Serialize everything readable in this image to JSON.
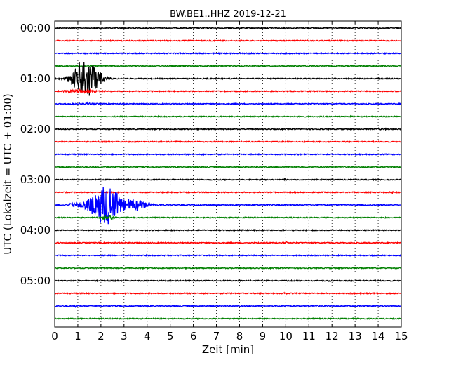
{
  "chart_data": {
    "type": "line",
    "title": "BW.BE1..HHZ 2019-12-21",
    "xlabel": "Zeit  [min]",
    "ylabel": "UTC (Lokalzeit = UTC + 01:00)",
    "xlim": [
      0,
      15
    ],
    "x_ticks": [
      0,
      1,
      2,
      3,
      4,
      5,
      6,
      7,
      8,
      9,
      10,
      11,
      12,
      13,
      14,
      15
    ],
    "x_tick_labels": [
      "0",
      "1",
      "2",
      "3",
      "4",
      "5",
      "6",
      "7",
      "8",
      "9",
      "10",
      "11",
      "12",
      "13",
      "14",
      "15"
    ],
    "y_tick_labels": [
      "00:00",
      "01:00",
      "02:00",
      "03:00",
      "04:00",
      "05:00"
    ],
    "y_ticks_minutes": [
      0,
      60,
      120,
      180,
      240,
      300
    ],
    "grid": true,
    "grid_style": "dotted-vertical",
    "colors": [
      "#000000",
      "#ff0000",
      "#0000ff",
      "#008000"
    ],
    "trace_interval_minutes": 15,
    "traces": [
      {
        "start": "00:00",
        "color": "#000000",
        "events": []
      },
      {
        "start": "00:15",
        "color": "#ff0000",
        "events": [
          {
            "t": 7.3,
            "amp": 0.3,
            "dur": 0.15
          }
        ]
      },
      {
        "start": "00:30",
        "color": "#0000ff",
        "events": []
      },
      {
        "start": "00:45",
        "color": "#008000",
        "events": [
          {
            "t": 14.9,
            "amp": 0.3,
            "dur": 0.1
          }
        ]
      },
      {
        "start": "01:00",
        "color": "#000000",
        "events": [
          {
            "t": 1.35,
            "amp": 7.5,
            "dur": 1.0,
            "spread": 0.4
          }
        ]
      },
      {
        "start": "01:15",
        "color": "#ff0000",
        "events": [
          {
            "t": 1.2,
            "amp": 0.6,
            "dur": 1.2
          }
        ]
      },
      {
        "start": "01:30",
        "color": "#0000ff",
        "events": [
          {
            "t": 1.3,
            "amp": 0.4,
            "dur": 0.6
          }
        ]
      },
      {
        "start": "01:45",
        "color": "#008000",
        "events": []
      },
      {
        "start": "02:00",
        "color": "#000000",
        "events": [
          {
            "t": 14.1,
            "amp": 0.3,
            "dur": 0.3
          }
        ]
      },
      {
        "start": "02:15",
        "color": "#ff0000",
        "events": []
      },
      {
        "start": "02:30",
        "color": "#0000ff",
        "events": []
      },
      {
        "start": "02:45",
        "color": "#008000",
        "events": []
      },
      {
        "start": "03:00",
        "color": "#000000",
        "events": [
          {
            "t": 10.0,
            "amp": 0.3,
            "dur": 0.1
          }
        ]
      },
      {
        "start": "03:15",
        "color": "#ff0000",
        "events": [
          {
            "t": 14.6,
            "amp": 0.4,
            "dur": 0.1
          }
        ]
      },
      {
        "start": "03:30",
        "color": "#0000ff",
        "events": [
          {
            "t": 2.2,
            "amp": 7.0,
            "dur": 1.4,
            "spread": 0.5
          },
          {
            "t": 3.5,
            "amp": 2.2,
            "dur": 1.0,
            "spread": 0.35
          },
          {
            "t": 0.9,
            "amp": 0.8,
            "dur": 0.4
          }
        ]
      },
      {
        "start": "03:45",
        "color": "#008000",
        "events": [
          {
            "t": 2.3,
            "amp": 0.8,
            "dur": 0.5
          }
        ]
      },
      {
        "start": "04:00",
        "color": "#000000",
        "events": []
      },
      {
        "start": "04:15",
        "color": "#ff0000",
        "events": [
          {
            "t": 10.0,
            "amp": 0.4,
            "dur": 0.1
          }
        ]
      },
      {
        "start": "04:30",
        "color": "#0000ff",
        "events": []
      },
      {
        "start": "04:45",
        "color": "#008000",
        "events": []
      },
      {
        "start": "05:00",
        "color": "#000000",
        "events": [
          {
            "t": 11.9,
            "amp": 0.4,
            "dur": 0.1
          }
        ]
      },
      {
        "start": "05:15",
        "color": "#ff0000",
        "events": [
          {
            "t": 10.0,
            "amp": 0.4,
            "dur": 0.1
          },
          {
            "t": 13.6,
            "amp": 0.3,
            "dur": 0.1
          },
          {
            "t": 14.0,
            "amp": 0.3,
            "dur": 0.1
          }
        ]
      },
      {
        "start": "05:30",
        "color": "#0000ff",
        "events": [
          {
            "t": 0.9,
            "amp": 0.4,
            "dur": 0.1
          }
        ]
      },
      {
        "start": "05:45",
        "color": "#008000",
        "events": []
      }
    ]
  }
}
